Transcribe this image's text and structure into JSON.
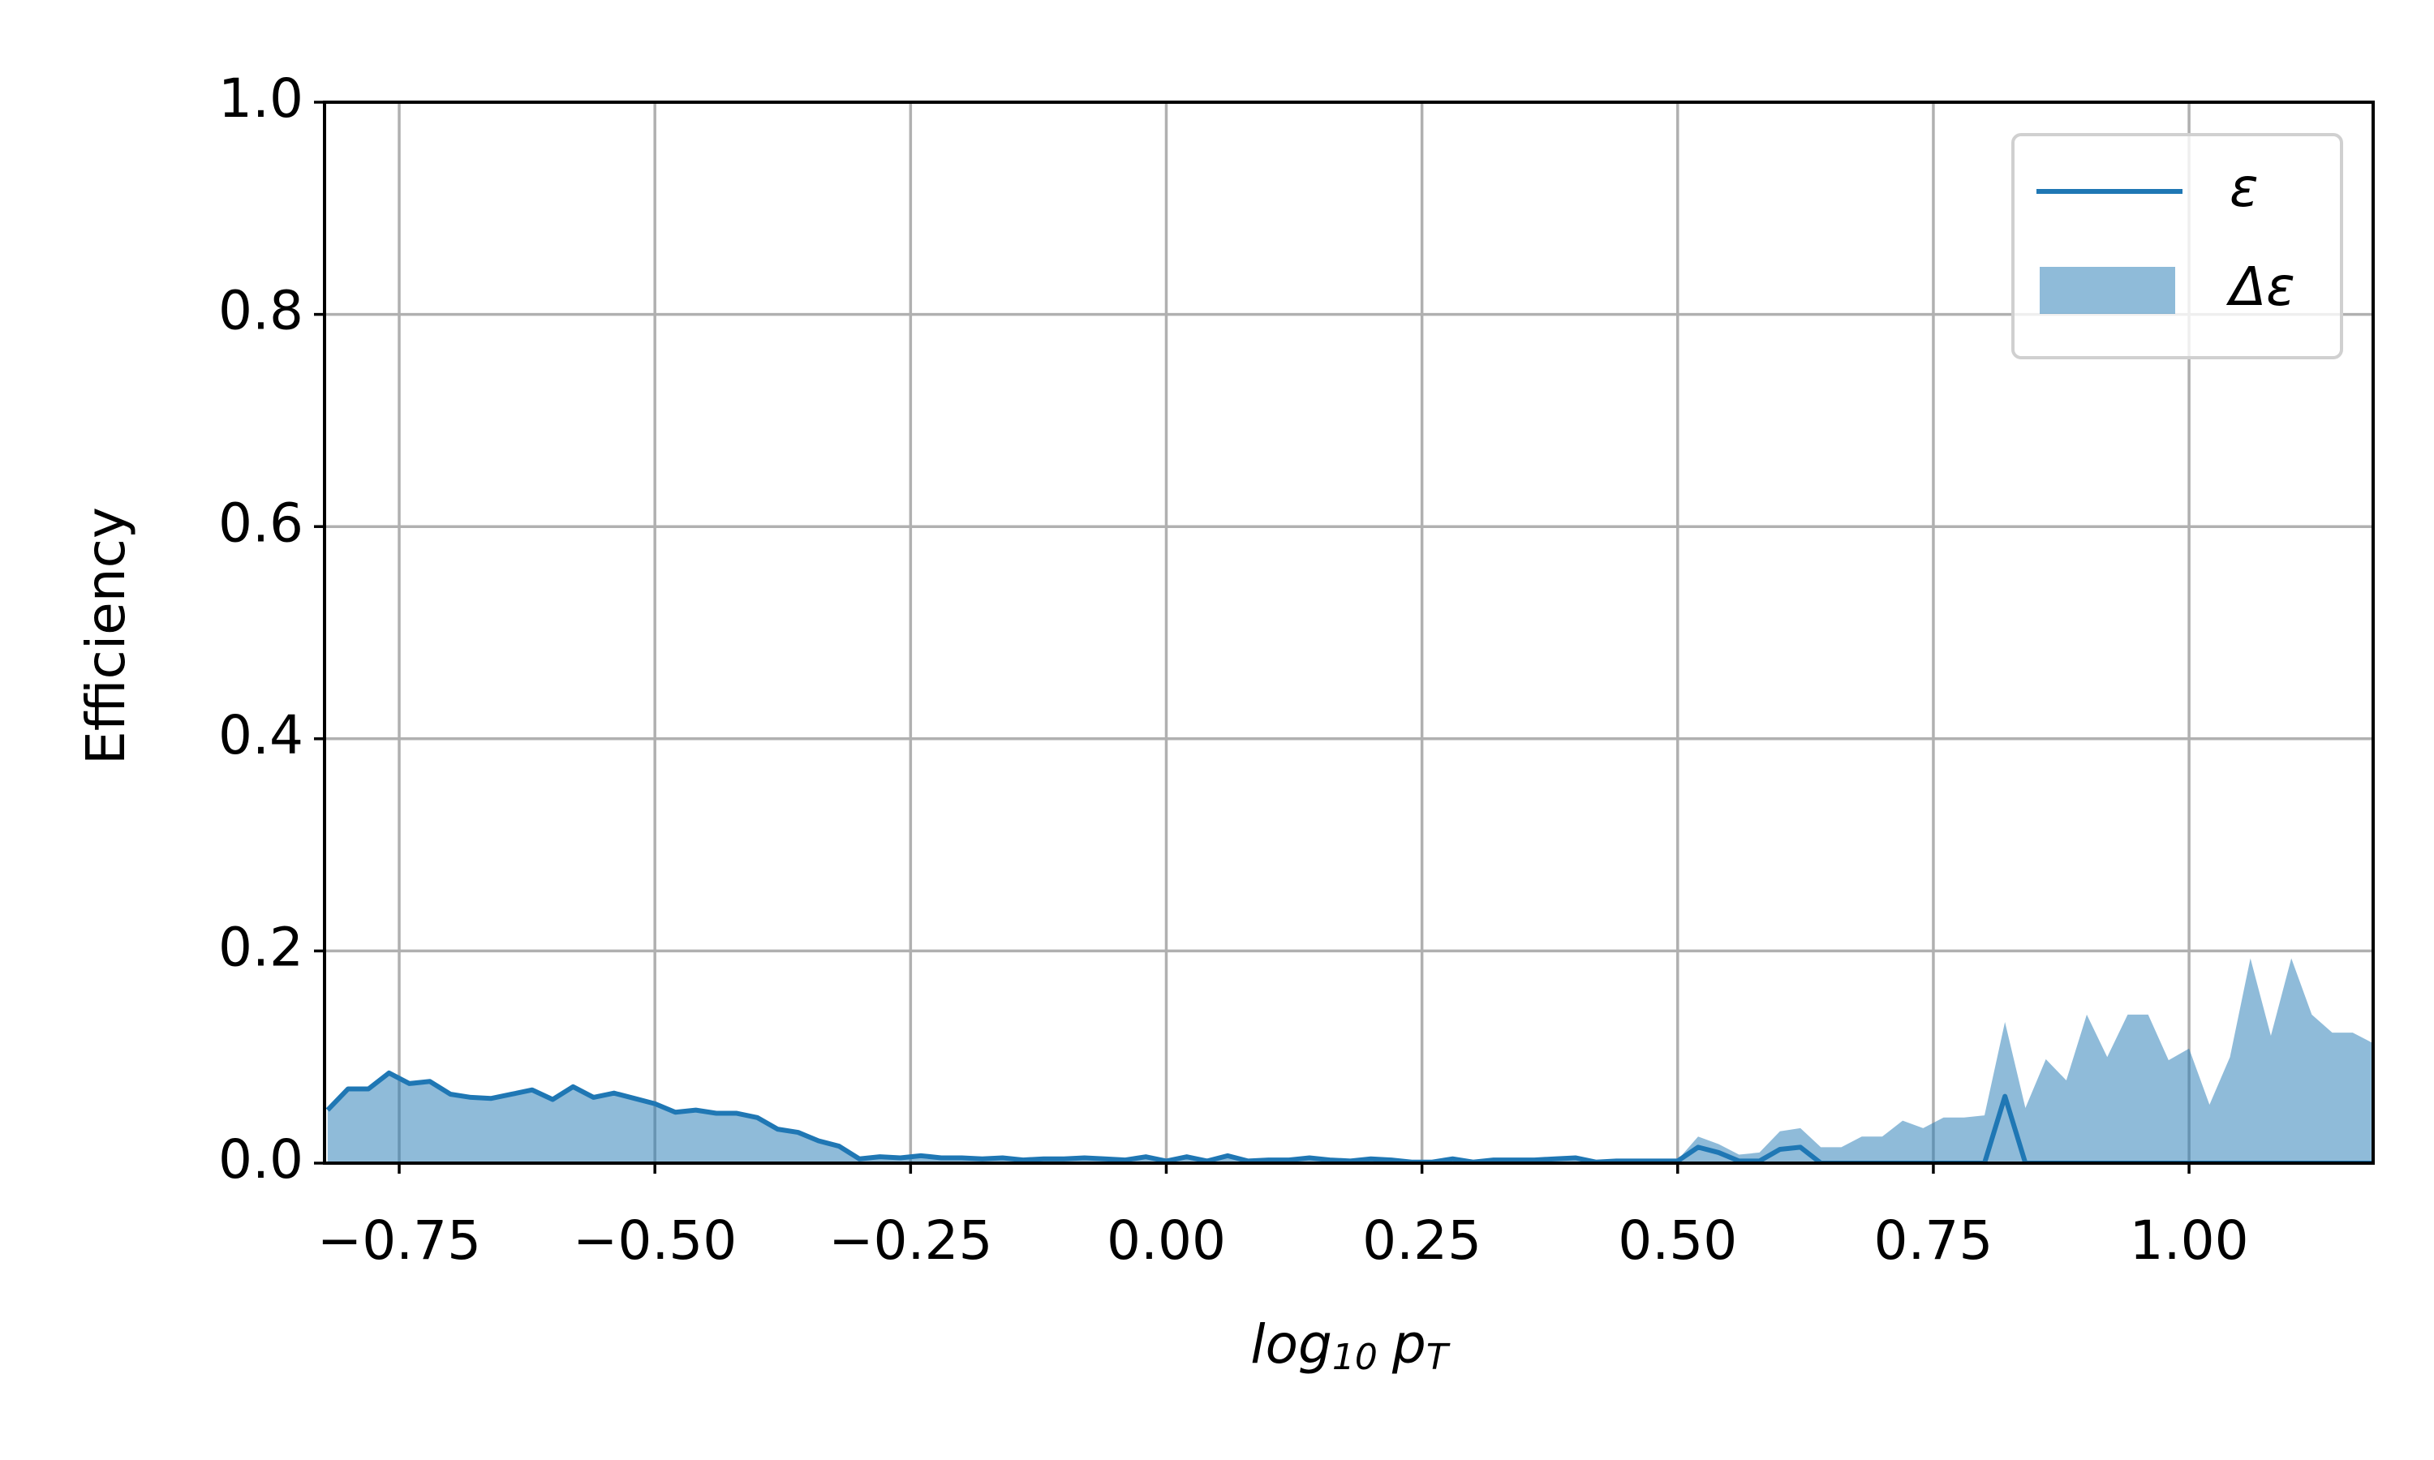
{
  "chart_data": {
    "type": "line",
    "xlabel": [
      "log",
      "10",
      "p",
      "T"
    ],
    "ylabel": "Efficiency",
    "x": [
      -0.82,
      -0.8,
      -0.78,
      -0.76,
      -0.74,
      -0.72,
      -0.7,
      -0.68,
      -0.66,
      -0.64,
      -0.62,
      -0.6,
      -0.58,
      -0.56,
      -0.54,
      -0.52,
      -0.5,
      -0.48,
      -0.46,
      -0.44,
      -0.42,
      -0.4,
      -0.38,
      -0.36,
      -0.34,
      -0.32,
      -0.3,
      -0.28,
      -0.26,
      -0.24,
      -0.22,
      -0.2,
      -0.18,
      -0.16,
      -0.14,
      -0.12,
      -0.1,
      -0.08,
      -0.06,
      -0.04,
      -0.02,
      0.0,
      0.02,
      0.04,
      0.06,
      0.08,
      0.1,
      0.12,
      0.14,
      0.16,
      0.18,
      0.2,
      0.22,
      0.24,
      0.26,
      0.28,
      0.3,
      0.32,
      0.34,
      0.36,
      0.38,
      0.4,
      0.42,
      0.44,
      0.46,
      0.48,
      0.5,
      0.52,
      0.54,
      0.56,
      0.58,
      0.6,
      0.62,
      0.64,
      0.66,
      0.68,
      0.7,
      0.72,
      0.74,
      0.76,
      0.78,
      0.8,
      0.82,
      0.84,
      0.86,
      0.88,
      0.9,
      0.92,
      0.94,
      0.96,
      0.98,
      1.0,
      1.02,
      1.04,
      1.06,
      1.08,
      1.1,
      1.12,
      1.14,
      1.16,
      1.18
    ],
    "series": [
      {
        "name": "ε",
        "kind": "line",
        "color": "#1f77b4",
        "values": [
          0.05,
          0.07,
          0.07,
          0.085,
          0.075,
          0.077,
          0.065,
          0.062,
          0.061,
          0.065,
          0.069,
          0.06,
          0.072,
          0.062,
          0.066,
          0.061,
          0.056,
          0.048,
          0.05,
          0.047,
          0.047,
          0.043,
          0.032,
          0.029,
          0.021,
          0.016,
          0.004,
          0.006,
          0.005,
          0.007,
          0.005,
          0.005,
          0.004,
          0.005,
          0.003,
          0.004,
          0.004,
          0.005,
          0.004,
          0.003,
          0.006,
          0.002,
          0.006,
          0.002,
          0.007,
          0.002,
          0.003,
          0.003,
          0.005,
          0.003,
          0.002,
          0.004,
          0.003,
          0.001,
          0.001,
          0.004,
          0.001,
          0.003,
          0.003,
          0.003,
          0.004,
          0.005,
          0.001,
          0.002,
          0.002,
          0.002,
          0.002,
          0.015,
          0.01,
          0.002,
          0.002,
          0.013,
          0.015,
          0,
          0,
          0,
          0,
          0,
          0,
          0,
          0,
          0,
          0.063,
          0,
          0,
          0,
          0,
          0,
          0,
          0,
          0,
          0,
          0,
          0,
          0,
          0,
          0,
          0,
          0,
          0,
          0
        ]
      },
      {
        "name": "Δε",
        "kind": "area",
        "color": "#1f77b4",
        "opacity": 0.5,
        "values": [
          0.05,
          0.07,
          0.07,
          0.085,
          0.075,
          0.077,
          0.065,
          0.062,
          0.061,
          0.065,
          0.069,
          0.06,
          0.072,
          0.062,
          0.066,
          0.061,
          0.056,
          0.048,
          0.05,
          0.047,
          0.047,
          0.043,
          0.032,
          0.029,
          0.021,
          0.016,
          0.004,
          0.006,
          0.005,
          0.007,
          0.005,
          0.005,
          0.004,
          0.005,
          0.003,
          0.004,
          0.004,
          0.005,
          0.004,
          0.003,
          0.006,
          0.002,
          0.006,
          0.002,
          0.007,
          0.002,
          0.003,
          0.003,
          0.005,
          0.003,
          0.002,
          0.004,
          0.003,
          0.001,
          0.001,
          0.004,
          0.001,
          0.003,
          0.003,
          0.003,
          0.004,
          0.005,
          0.001,
          0.002,
          0.002,
          0.002,
          0.003,
          0.025,
          0.018,
          0.008,
          0.01,
          0.03,
          0.033,
          0.015,
          0.015,
          0.025,
          0.025,
          0.04,
          0.033,
          0.043,
          0.043,
          0.045,
          0.133,
          0.052,
          0.098,
          0.078,
          0.14,
          0.1,
          0.14,
          0.14,
          0.097,
          0.108,
          0.055,
          0.1,
          0.193,
          0.12,
          0.193,
          0.14,
          0.123,
          0.123,
          0.113
        ]
      }
    ],
    "xlim": [
      -0.823,
      1.18
    ],
    "ylim": [
      0,
      1
    ],
    "xticks": [
      {
        "value": -0.75,
        "label": "−0.75"
      },
      {
        "value": -0.5,
        "label": "−0.50"
      },
      {
        "value": -0.25,
        "label": "−0.25"
      },
      {
        "value": 0,
        "label": "0.00"
      },
      {
        "value": 0.25,
        "label": "0.25"
      },
      {
        "value": 0.5,
        "label": "0.50"
      },
      {
        "value": 0.75,
        "label": "0.75"
      },
      {
        "value": 1,
        "label": "1.00"
      }
    ],
    "yticks": [
      {
        "value": 0,
        "label": "0.0"
      },
      0.2,
      0.4,
      0.6,
      0.8,
      {
        "value": 1,
        "label": "1.0"
      }
    ],
    "grid": true,
    "legend": "upper right"
  }
}
